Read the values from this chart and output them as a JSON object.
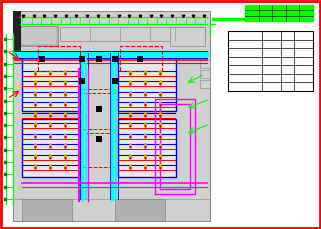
{
  "bg_color": "#ffffff",
  "outer_border_color": "#ff0000",
  "blue_dark": "#0000ee",
  "blue_medium": "#0044ff",
  "red": "#ff0000",
  "green": "#00ff00",
  "magenta": "#ff00ff",
  "cyan": "#00ffff",
  "black": "#000000",
  "gray_light": "#d0d0d0",
  "gray_med": "#b0b0b0",
  "gray_dark": "#888888",
  "yellow": "#ffff00",
  "figsize": [
    3.21,
    2.29
  ],
  "dpi": 100
}
